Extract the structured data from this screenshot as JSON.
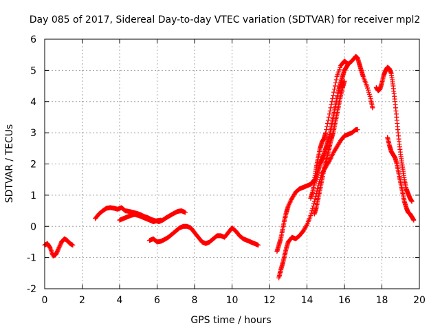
{
  "chart_data": {
    "type": "scatter",
    "title": "Day 085 of 2017, Sidereal Day-to-day VTEC variation (SDTVAR) for receiver mpl2",
    "xlabel": "GPS time / hours",
    "ylabel": "SDTVAR / TECUs",
    "xlim": [
      0,
      20
    ],
    "ylim": [
      -2,
      6
    ],
    "x_ticks": [
      "0",
      "2",
      "4",
      "6",
      "8",
      "10",
      "12",
      "14",
      "16",
      "18",
      "20"
    ],
    "y_ticks": [
      "-2",
      "-1",
      "0",
      "1",
      "2",
      "3",
      "4",
      "5",
      "6"
    ],
    "grid": true,
    "marker": "plus",
    "color": "#ff0000",
    "series": [
      {
        "x": [
          0.0,
          0.15,
          0.3,
          0.45,
          0.6,
          0.75,
          0.9,
          1.05,
          1.2,
          1.35,
          1.5
        ],
        "y": [
          -0.6,
          -0.55,
          -0.7,
          -0.95,
          -0.9,
          -0.7,
          -0.5,
          -0.4,
          -0.45,
          -0.55,
          -0.6
        ]
      },
      {
        "x": [
          2.7,
          2.9,
          3.1,
          3.3,
          3.5,
          3.7,
          3.9,
          4.1,
          4.3,
          4.5,
          4.7,
          4.9,
          5.1,
          5.3,
          5.5,
          5.7,
          5.9,
          6.1,
          6.3,
          6.5,
          6.7,
          6.9,
          7.1,
          7.3,
          7.5
        ],
        "y": [
          0.25,
          0.4,
          0.5,
          0.58,
          0.6,
          0.58,
          0.55,
          0.6,
          0.5,
          0.48,
          0.45,
          0.42,
          0.38,
          0.32,
          0.28,
          0.22,
          0.18,
          0.15,
          0.2,
          0.28,
          0.35,
          0.42,
          0.48,
          0.5,
          0.45
        ]
      },
      {
        "x": [
          4.0,
          4.2,
          4.4,
          4.6,
          4.8,
          5.0,
          5.2,
          5.4,
          5.6,
          5.8,
          6.0,
          6.2
        ],
        "y": [
          0.2,
          0.25,
          0.3,
          0.35,
          0.38,
          0.35,
          0.3,
          0.25,
          0.2,
          0.15,
          0.18,
          0.2
        ]
      },
      {
        "x": [
          5.6,
          5.8,
          6.0,
          6.2,
          6.4,
          6.6,
          6.8,
          7.0,
          7.2,
          7.4,
          7.6,
          7.8,
          8.0,
          8.2,
          8.4,
          8.6,
          8.8,
          9.0,
          9.2,
          9.4,
          9.6,
          9.8,
          10.0,
          10.2,
          10.4,
          10.6,
          10.8,
          11.0,
          11.2,
          11.4
        ],
        "y": [
          -0.45,
          -0.4,
          -0.5,
          -0.48,
          -0.42,
          -0.35,
          -0.25,
          -0.15,
          -0.05,
          0.0,
          0.0,
          -0.05,
          -0.2,
          -0.35,
          -0.5,
          -0.55,
          -0.5,
          -0.4,
          -0.3,
          -0.3,
          -0.35,
          -0.2,
          -0.05,
          -0.15,
          -0.3,
          -0.4,
          -0.45,
          -0.5,
          -0.55,
          -0.6
        ]
      },
      {
        "x": [
          12.4,
          12.5,
          12.6,
          12.7,
          12.8,
          12.9,
          13.0,
          13.2,
          13.4,
          13.6,
          13.8,
          14.0,
          14.2,
          14.4,
          14.5,
          14.6,
          14.7,
          14.8,
          14.9,
          15.0,
          15.2,
          15.4,
          15.6,
          15.8,
          16.0,
          16.2,
          16.4,
          16.6,
          16.7,
          16.8,
          16.9,
          17.0,
          17.2,
          17.4,
          17.5
        ],
        "y": [
          -0.8,
          -0.6,
          -0.4,
          -0.1,
          0.2,
          0.45,
          0.65,
          0.9,
          1.1,
          1.2,
          1.25,
          1.3,
          1.35,
          1.5,
          1.9,
          2.2,
          2.5,
          2.7,
          2.8,
          3.0,
          3.6,
          4.2,
          4.8,
          5.15,
          5.3,
          5.2,
          5.3,
          5.45,
          5.4,
          5.2,
          5.0,
          4.8,
          4.5,
          4.1,
          3.8
        ]
      },
      {
        "x": [
          12.5,
          12.6,
          12.7,
          12.8,
          12.9,
          13.0,
          13.2,
          13.4,
          13.6,
          13.8,
          14.0,
          14.2,
          14.4,
          14.6,
          14.8,
          15.0,
          15.2,
          15.4,
          15.6,
          15.8,
          16.0,
          16.2,
          16.4,
          16.6,
          16.7
        ],
        "y": [
          -1.65,
          -1.4,
          -1.2,
          -0.95,
          -0.7,
          -0.5,
          -0.35,
          -0.4,
          -0.3,
          -0.15,
          0.05,
          0.35,
          0.8,
          1.3,
          1.7,
          1.9,
          2.1,
          2.35,
          2.55,
          2.75,
          2.9,
          2.95,
          3.0,
          3.1,
          3.1
        ]
      },
      {
        "x": [
          14.2,
          14.3,
          14.4,
          14.5,
          14.6,
          14.7,
          14.8,
          14.9,
          15.0,
          15.1,
          15.2,
          15.3,
          15.4,
          15.5,
          15.6,
          15.7,
          15.8,
          15.9,
          16.0,
          16.1,
          16.2
        ],
        "y": [
          0.9,
          1.1,
          1.4,
          1.6,
          1.8,
          2.0,
          2.15,
          2.3,
          2.5,
          2.7,
          2.9,
          3.2,
          3.5,
          3.8,
          4.1,
          4.4,
          4.6,
          4.8,
          5.0,
          5.1,
          5.2
        ]
      },
      {
        "x": [
          14.4,
          14.5,
          14.6,
          14.7,
          14.8,
          14.9,
          15.0,
          15.1,
          15.2,
          15.3,
          15.4,
          15.5,
          15.6,
          15.7,
          15.8,
          15.9,
          16.0
        ],
        "y": [
          0.4,
          0.6,
          0.9,
          1.2,
          1.5,
          1.8,
          2.05,
          2.3,
          2.55,
          2.8,
          3.0,
          3.3,
          3.6,
          3.9,
          4.2,
          4.45,
          4.65
        ]
      },
      {
        "x": [
          17.7,
          17.8,
          17.9,
          18.0,
          18.1,
          18.2,
          18.3,
          18.4,
          18.5,
          18.6,
          18.7,
          18.8,
          18.9,
          19.0,
          19.1,
          19.2,
          19.3,
          19.4,
          19.5,
          19.6
        ],
        "y": [
          4.45,
          4.35,
          4.4,
          4.6,
          4.85,
          5.0,
          5.1,
          5.05,
          4.9,
          4.5,
          4.0,
          3.4,
          2.8,
          2.3,
          1.9,
          1.5,
          1.2,
          1.05,
          0.9,
          0.8
        ]
      },
      {
        "x": [
          18.3,
          18.4,
          18.5,
          18.6,
          18.7,
          18.8,
          18.9,
          19.0,
          19.1,
          19.2,
          19.3,
          19.4,
          19.5,
          19.6,
          19.7
        ],
        "y": [
          2.85,
          2.6,
          2.4,
          2.3,
          2.2,
          2.0,
          1.7,
          1.4,
          1.1,
          0.8,
          0.6,
          0.45,
          0.4,
          0.3,
          0.2
        ]
      }
    ]
  }
}
